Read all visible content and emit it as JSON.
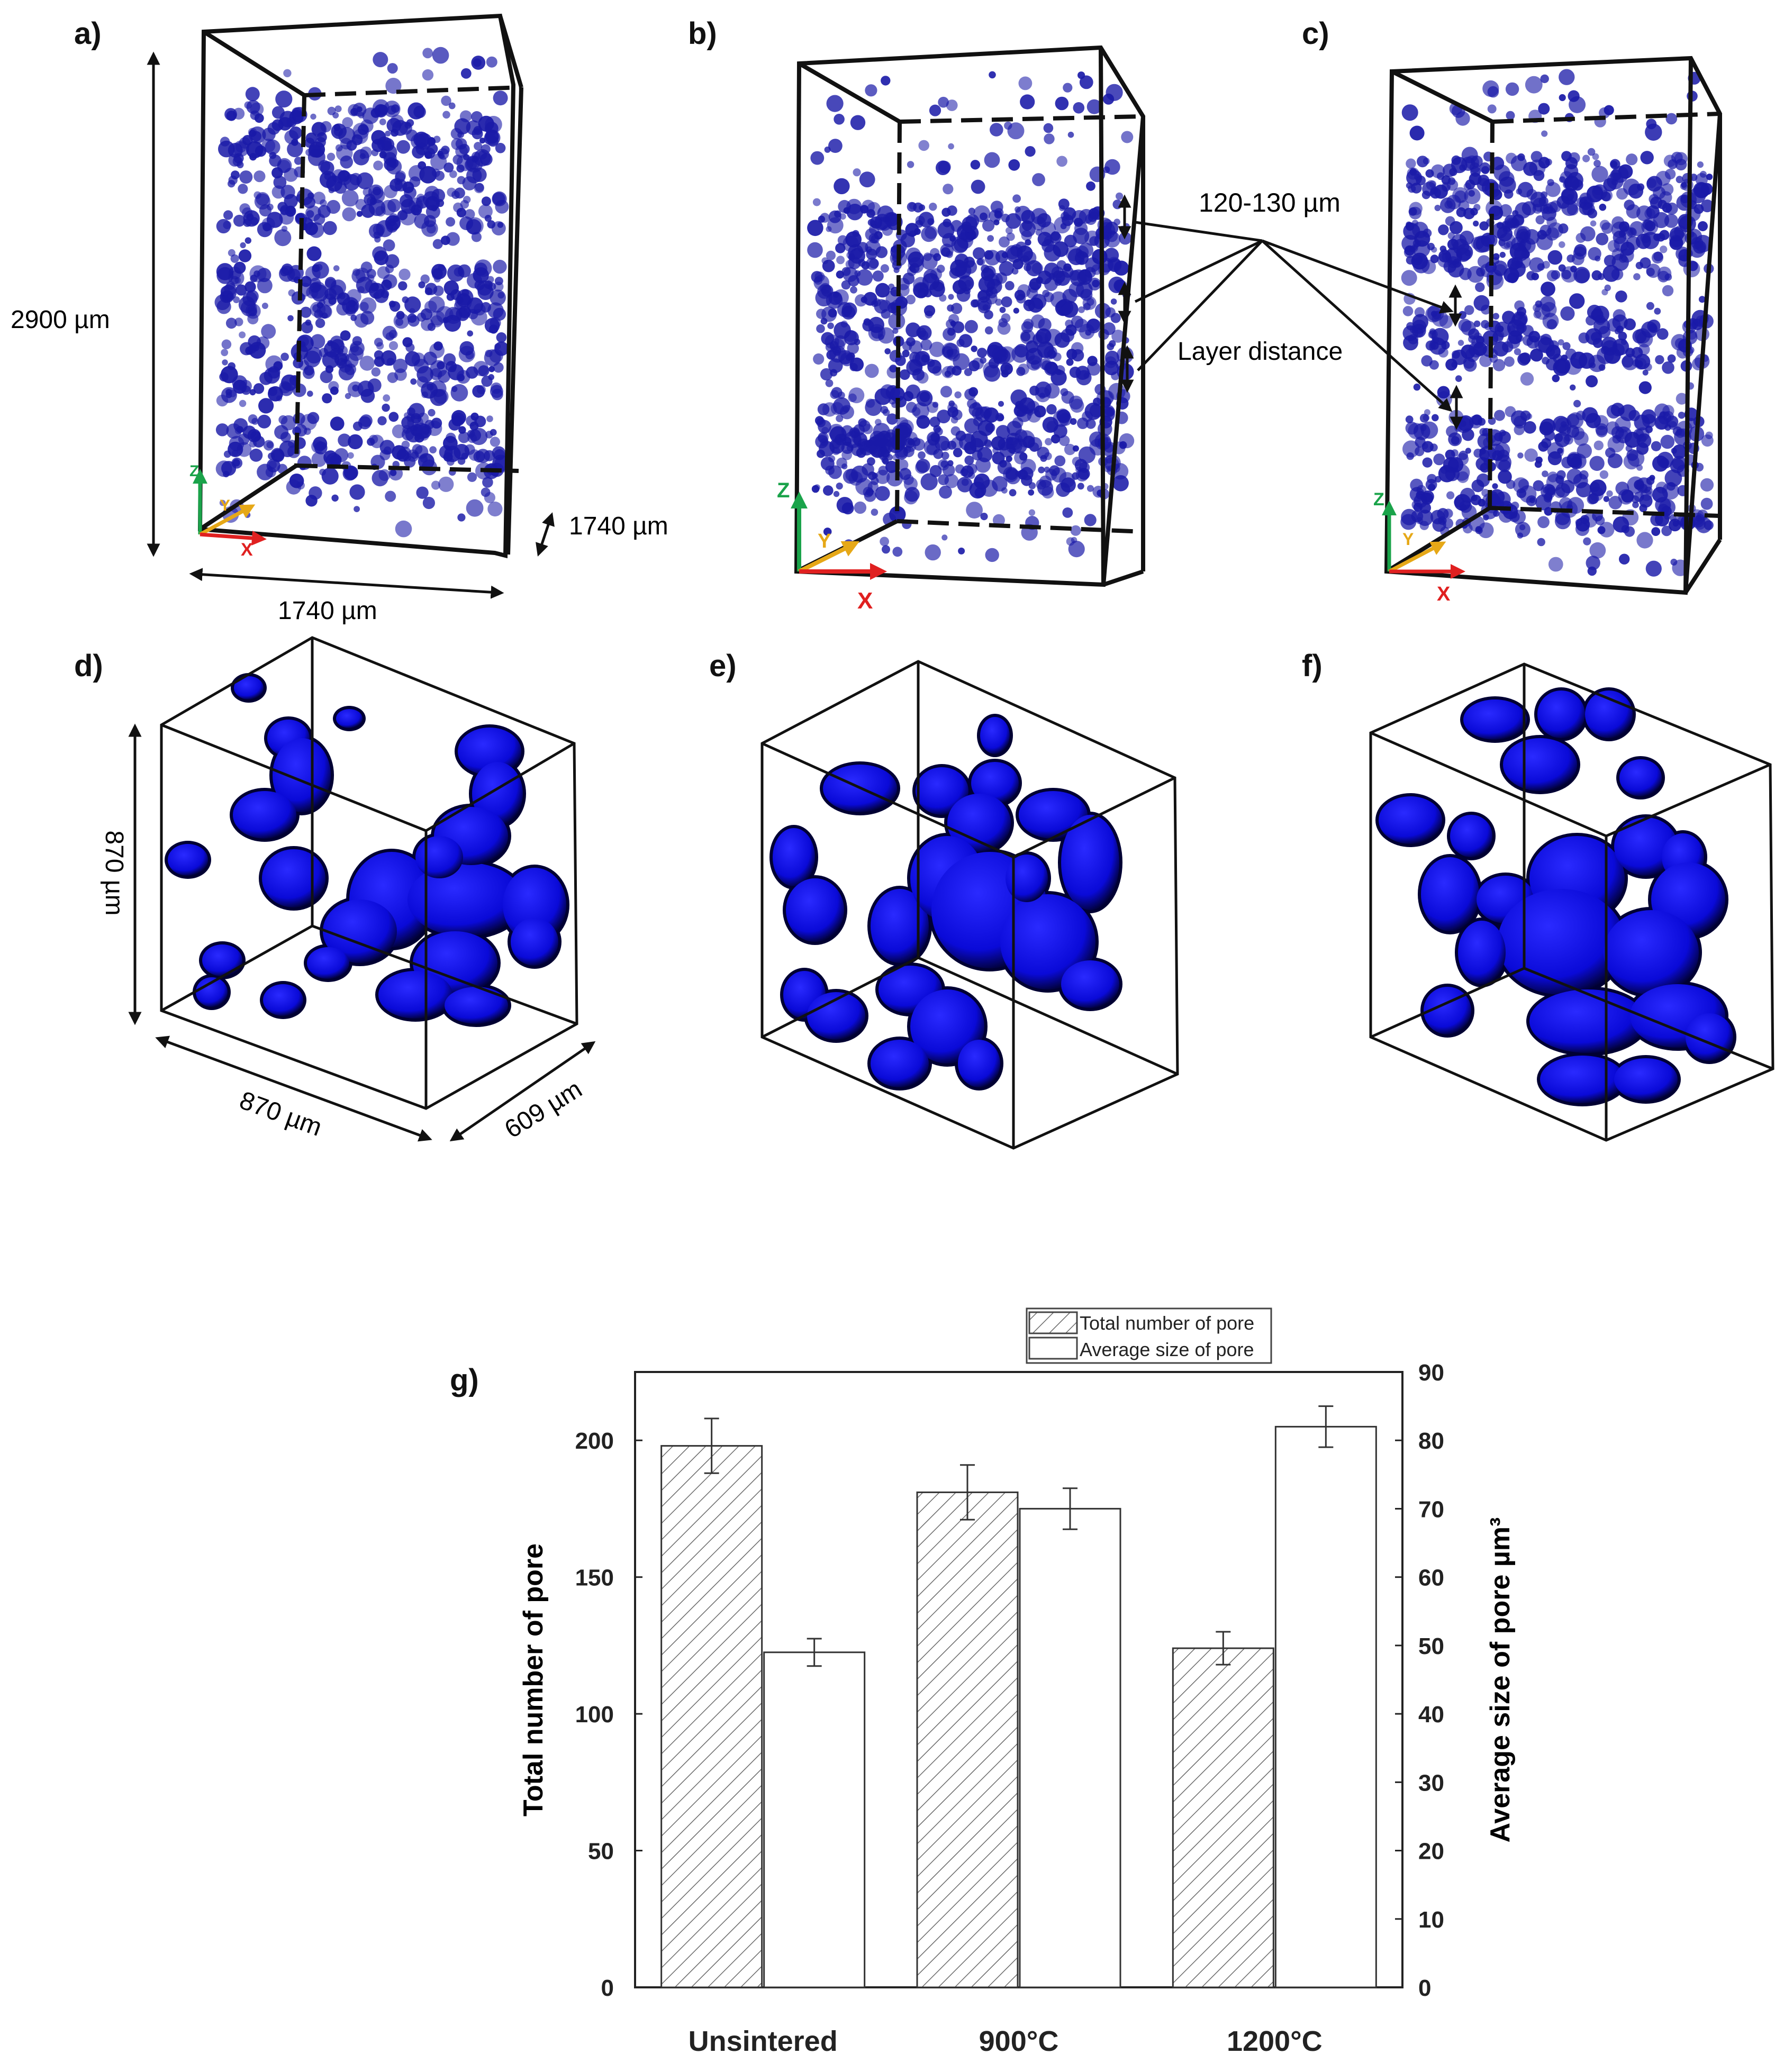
{
  "panels": {
    "a": {
      "label": "a)",
      "height_label": "2900 µm",
      "width_label": "1740 µm",
      "depth_label": "1740 µm",
      "axes": {
        "z": "Z",
        "y": "Y",
        "x": "X"
      }
    },
    "b": {
      "label": "b)",
      "axes": {
        "z": "Z",
        "y": "Y",
        "x": "X"
      },
      "spacing_label": "120-130 µm",
      "layer_label": "Layer distance"
    },
    "c": {
      "label": "c)",
      "axes": {
        "z": "Z",
        "y": "Y",
        "x": "X"
      }
    },
    "d": {
      "label": "d)",
      "height_label": "870 µm",
      "width_label": "870 µm",
      "depth_label": "609 µm"
    },
    "e": {
      "label": "e)"
    },
    "f": {
      "label": "f)"
    },
    "g": {
      "label": "g)"
    }
  },
  "colors": {
    "pore": "#1a1aa8",
    "pore_dark": "#000033",
    "pore_blob": "#1010ee",
    "axis_z": "#1aa34a",
    "axis_y": "#e6a817",
    "axis_x": "#e02020"
  },
  "chart_data": {
    "type": "bar",
    "categories": [
      "Unsintered",
      "900°C",
      "1200°C"
    ],
    "series": [
      {
        "name": "Total number of pore",
        "axis": "left",
        "pattern": "hatch",
        "values": [
          198,
          181,
          124
        ],
        "errors": [
          10,
          10,
          6
        ]
      },
      {
        "name": "Average size of pore",
        "axis": "right",
        "pattern": "none",
        "values": [
          49,
          70,
          82
        ],
        "errors": [
          2,
          3,
          3
        ]
      }
    ],
    "ylabel_left": "Total number of pore",
    "ylabel_right": "Average size of pore µm³",
    "ylim_left": [
      0,
      225
    ],
    "ylim_right": [
      0,
      90
    ],
    "yticks_left": [
      "0",
      "50",
      "100",
      "150",
      "200"
    ],
    "yticks_right": [
      "0",
      "10",
      "20",
      "30",
      "40",
      "50",
      "60",
      "70",
      "80",
      "90"
    ],
    "legend_position": "top-right"
  }
}
